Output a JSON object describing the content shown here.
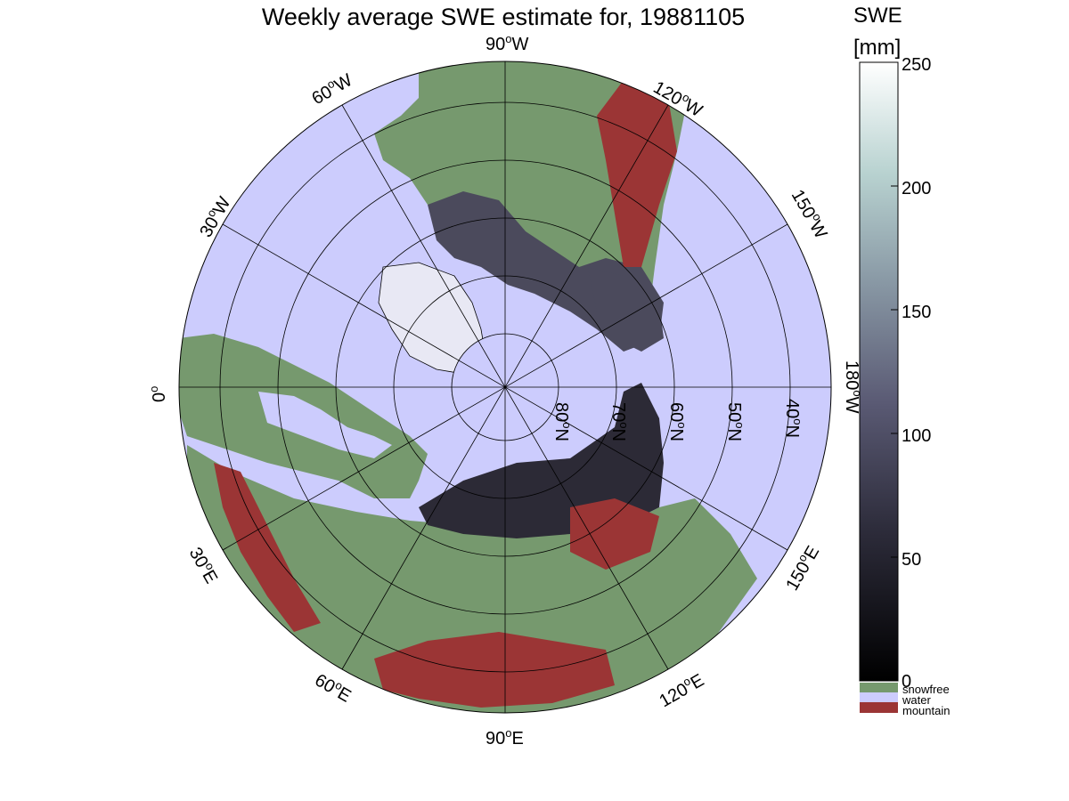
{
  "title": "Weekly average SWE estimate for, 19881105",
  "colorbar": {
    "title": "SWE",
    "unit": "[mm]",
    "range": [
      0,
      250
    ],
    "ticks": [
      "250",
      "200",
      "150",
      "100",
      "50",
      "0"
    ],
    "legend": [
      {
        "label": "snowfree",
        "color": "#76996e"
      },
      {
        "label": "water",
        "color": "#ccccfd"
      },
      {
        "label": "mountain",
        "color": "#9b3535"
      }
    ]
  },
  "map": {
    "projection": "polar-stereographic-north",
    "colors": {
      "water": "#ccccfd",
      "snowfree": "#76996e",
      "mountain": "#9b3535",
      "snow_low": "#2c2a36",
      "snow_mid": "#4b4a5c"
    },
    "longitude_labels": [
      {
        "name": "lon-90w",
        "sup": "0",
        "pre": "90",
        "post": "W"
      },
      {
        "name": "lon-60w",
        "sup": "0",
        "pre": "60",
        "post": "W"
      },
      {
        "name": "lon-120w",
        "sup": "0",
        "pre": "120",
        "post": "W"
      },
      {
        "name": "lon-30w",
        "sup": "0",
        "pre": "30",
        "post": "W"
      },
      {
        "name": "lon-150w",
        "sup": "0",
        "pre": "150",
        "post": "W"
      },
      {
        "name": "lon-0",
        "sup": "0",
        "pre": "0",
        "post": ""
      },
      {
        "name": "lon-180w",
        "sup": "0",
        "pre": "180",
        "post": "W"
      },
      {
        "name": "lon-30e",
        "sup": "0",
        "pre": "30",
        "post": "E"
      },
      {
        "name": "lon-150e",
        "sup": "0",
        "pre": "150",
        "post": "E"
      },
      {
        "name": "lon-60e",
        "sup": "0",
        "pre": "60",
        "post": "E"
      },
      {
        "name": "lon-120e",
        "sup": "0",
        "pre": "120",
        "post": "E"
      },
      {
        "name": "lon-90e",
        "sup": "0",
        "pre": "90",
        "post": "E"
      }
    ],
    "latitude_labels": [
      {
        "name": "lat-80n",
        "sup": "0",
        "pre": "80",
        "post": "N"
      },
      {
        "name": "lat-70n",
        "sup": "0",
        "pre": "70",
        "post": "N"
      },
      {
        "name": "lat-60n",
        "sup": "0",
        "pre": "60",
        "post": "N"
      },
      {
        "name": "lat-50n",
        "sup": "0",
        "pre": "50",
        "post": "N"
      },
      {
        "name": "lat-40n",
        "sup": "0",
        "pre": "40",
        "post": "N"
      }
    ]
  }
}
